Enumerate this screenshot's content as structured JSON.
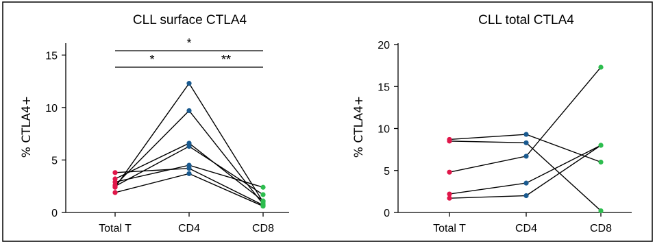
{
  "chart_data": [
    {
      "type": "line",
      "title": "CLL surface CTLA4",
      "ylabel": "% CTLA4+",
      "xlabel": "",
      "categories": [
        "Total T",
        "CD4",
        "CD8"
      ],
      "yticks": [
        0,
        5,
        10,
        15
      ],
      "ylim": [
        0,
        16
      ],
      "category_colors": [
        "#e0174a",
        "#1a5a8f",
        "#2dbd4e"
      ],
      "series": [
        {
          "values": [
            2.4,
            12.3,
            1.0
          ]
        },
        {
          "values": [
            2.6,
            9.7,
            0.8
          ]
        },
        {
          "values": [
            3.2,
            6.6,
            1.1
          ]
        },
        {
          "values": [
            3.8,
            4.2,
            0.7
          ]
        },
        {
          "values": [
            2.5,
            6.3,
            1.7
          ]
        },
        {
          "values": [
            2.9,
            4.5,
            2.4
          ]
        },
        {
          "values": [
            1.9,
            3.7,
            0.6
          ]
        }
      ],
      "annotations": [
        {
          "from": "Total T",
          "to": "CD8",
          "label": "*"
        },
        {
          "from": "Total T",
          "to": "CD4",
          "label": "*"
        },
        {
          "from": "CD4",
          "to": "CD8",
          "label": "**"
        }
      ],
      "grid": false
    },
    {
      "type": "line",
      "title": "CLL total CTLA4",
      "ylabel": "% CTLA4+",
      "xlabel": "",
      "categories": [
        "Total T",
        "CD4",
        "CD8"
      ],
      "yticks": [
        0,
        5,
        10,
        15,
        20
      ],
      "ylim": [
        0,
        20
      ],
      "category_colors": [
        "#e0174a",
        "#1a5a8f",
        "#2dbd4e"
      ],
      "series": [
        {
          "values": [
            8.7,
            9.3,
            6.0
          ]
        },
        {
          "values": [
            8.5,
            8.3,
            0.2
          ]
        },
        {
          "values": [
            4.8,
            6.7,
            17.3
          ]
        },
        {
          "values": [
            2.2,
            3.5,
            8.0
          ]
        },
        {
          "values": [
            1.7,
            2.0,
            8.0
          ]
        }
      ],
      "annotations": [],
      "grid": false
    }
  ]
}
